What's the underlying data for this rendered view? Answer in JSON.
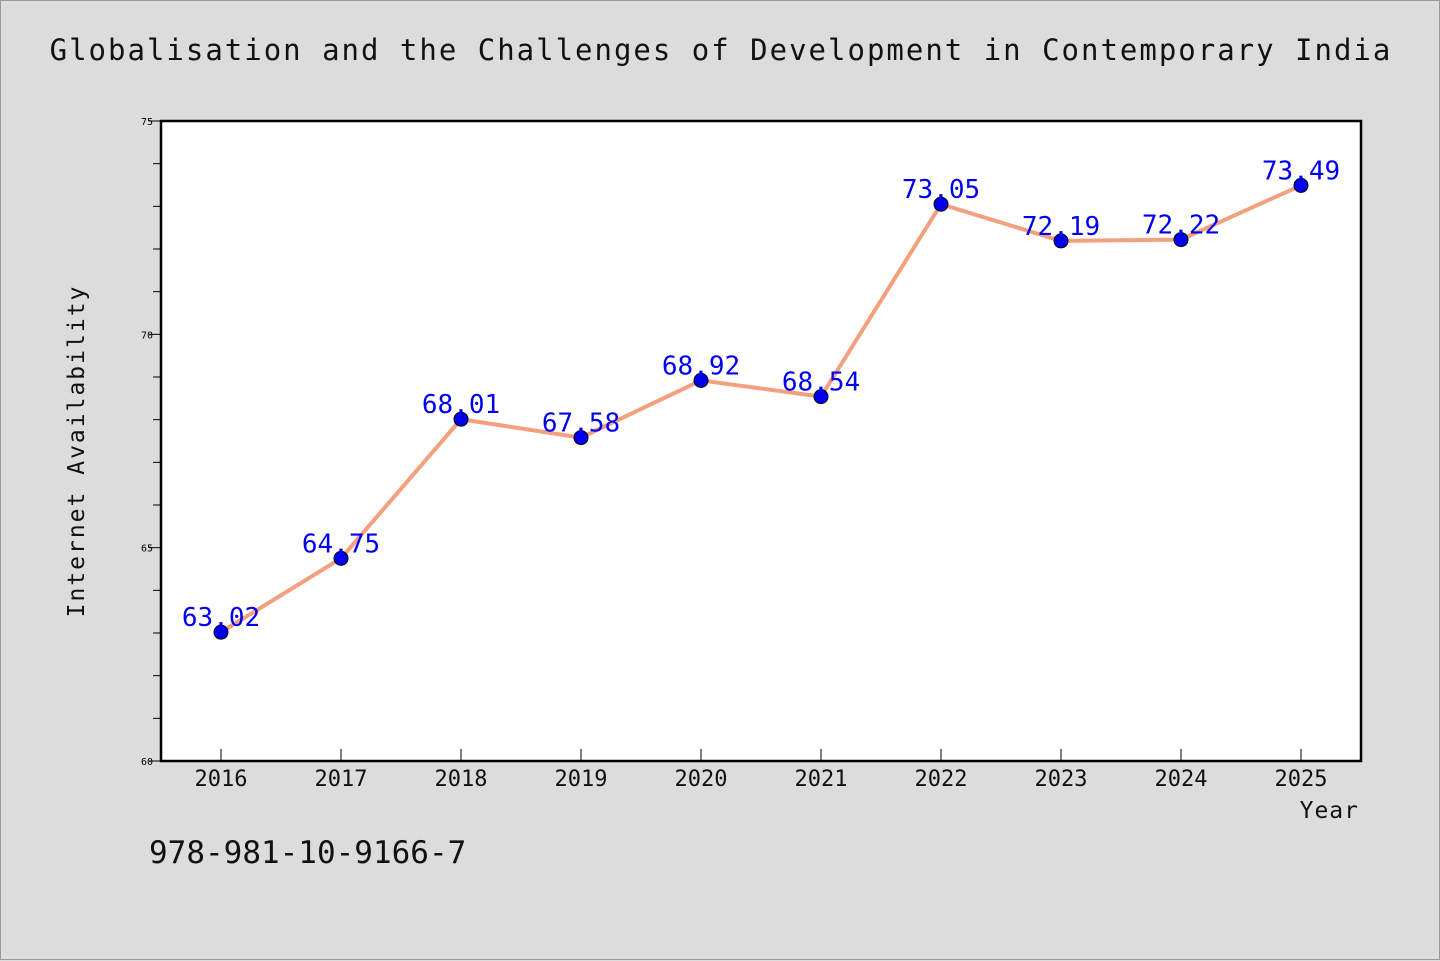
{
  "chart_data": {
    "type": "line",
    "title": "Globalisation and the Challenges of Development in Contemporary India",
    "xlabel": "Year",
    "ylabel": "Internet Availability",
    "categories": [
      "2016",
      "2017",
      "2018",
      "2019",
      "2020",
      "2021",
      "2022",
      "2023",
      "2024",
      "2025"
    ],
    "series": [
      {
        "values": [
          63.02,
          64.75,
          68.01,
          67.58,
          68.92,
          68.54,
          73.05,
          72.19,
          72.22,
          73.49
        ]
      }
    ],
    "data_labels": [
      "63.02",
      "64.75",
      "68.01",
      "67.58",
      "68.92",
      "68.54",
      "73.05",
      "72.19",
      "72.22",
      "73.49"
    ],
    "ylim": [
      60,
      75
    ],
    "yticks": [
      60,
      65,
      70,
      75
    ],
    "ytick_labels": [
      "60",
      "65",
      "70",
      "75"
    ],
    "grid": false,
    "line_color": "#f4a07f",
    "marker_color": "#0000ee",
    "label_color": "#0000ee"
  },
  "footer": {
    "isbn": "978-981-10-9166-7"
  }
}
